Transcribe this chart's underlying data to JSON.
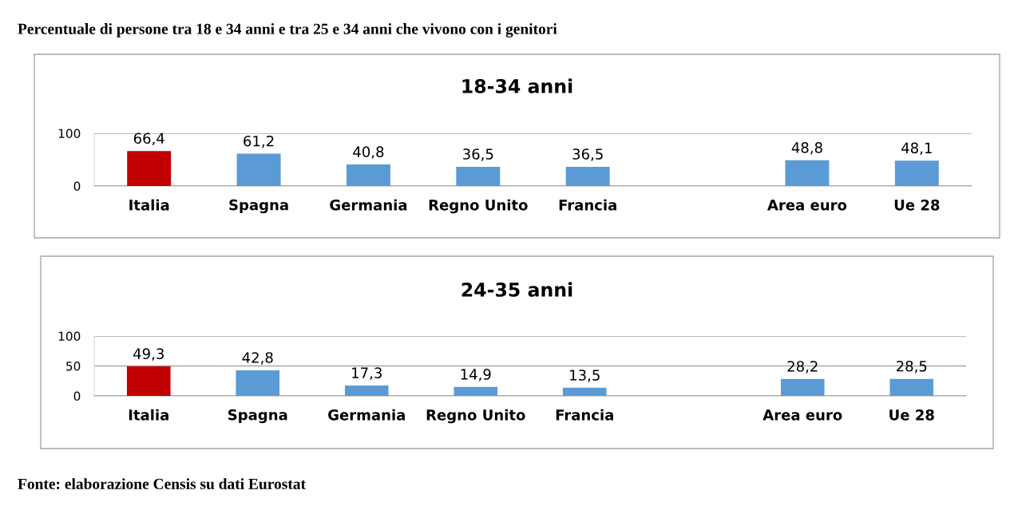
{
  "chart_data": [
    {
      "type": "bar",
      "title": "18-34 anni",
      "categories": [
        "Italia",
        "Spagna",
        "Germania",
        "Regno Unito",
        "Francia",
        null,
        "Area euro",
        "Ue 28"
      ],
      "values": [
        66.4,
        61.2,
        40.8,
        36.5,
        36.5,
        null,
        48.8,
        48.1
      ],
      "value_labels": [
        "66,4",
        "61,2",
        "40,8",
        "36,5",
        "36,5",
        null,
        "48,8",
        "48,1"
      ],
      "colors": [
        "#c00000",
        "#5b9bd5",
        "#5b9bd5",
        "#5b9bd5",
        "#5b9bd5",
        "#5b9bd5",
        "#5b9bd5",
        "#5b9bd5"
      ],
      "ylim": [
        0,
        100
      ],
      "yticks": [
        0,
        100
      ],
      "grid": "y",
      "annotations": [
        "Percentuale di persone tra 18 e 34 anni e tra 25 e 34 anni che vivono con i genitori"
      ]
    },
    {
      "type": "bar",
      "title": "24-35 anni",
      "categories": [
        "Italia",
        "Spagna",
        "Germania",
        "Regno Unito",
        "Francia",
        null,
        "Area euro",
        "Ue 28"
      ],
      "values": [
        49.3,
        42.8,
        17.3,
        14.9,
        13.5,
        null,
        28.2,
        28.5
      ],
      "value_labels": [
        "49,3",
        "42,8",
        "17,3",
        "14,9",
        "13,5",
        null,
        "28,2",
        "28,5"
      ],
      "colors": [
        "#c00000",
        "#5b9bd5",
        "#5b9bd5",
        "#5b9bd5",
        "#5b9bd5",
        "#5b9bd5",
        "#5b9bd5",
        "#5b9bd5"
      ],
      "ylim": [
        0,
        100
      ],
      "yticks": [
        0,
        50,
        100
      ],
      "grid": "y",
      "annotations": [
        "Fonte: elaborazione Censis su dati Eurostat"
      ]
    }
  ]
}
